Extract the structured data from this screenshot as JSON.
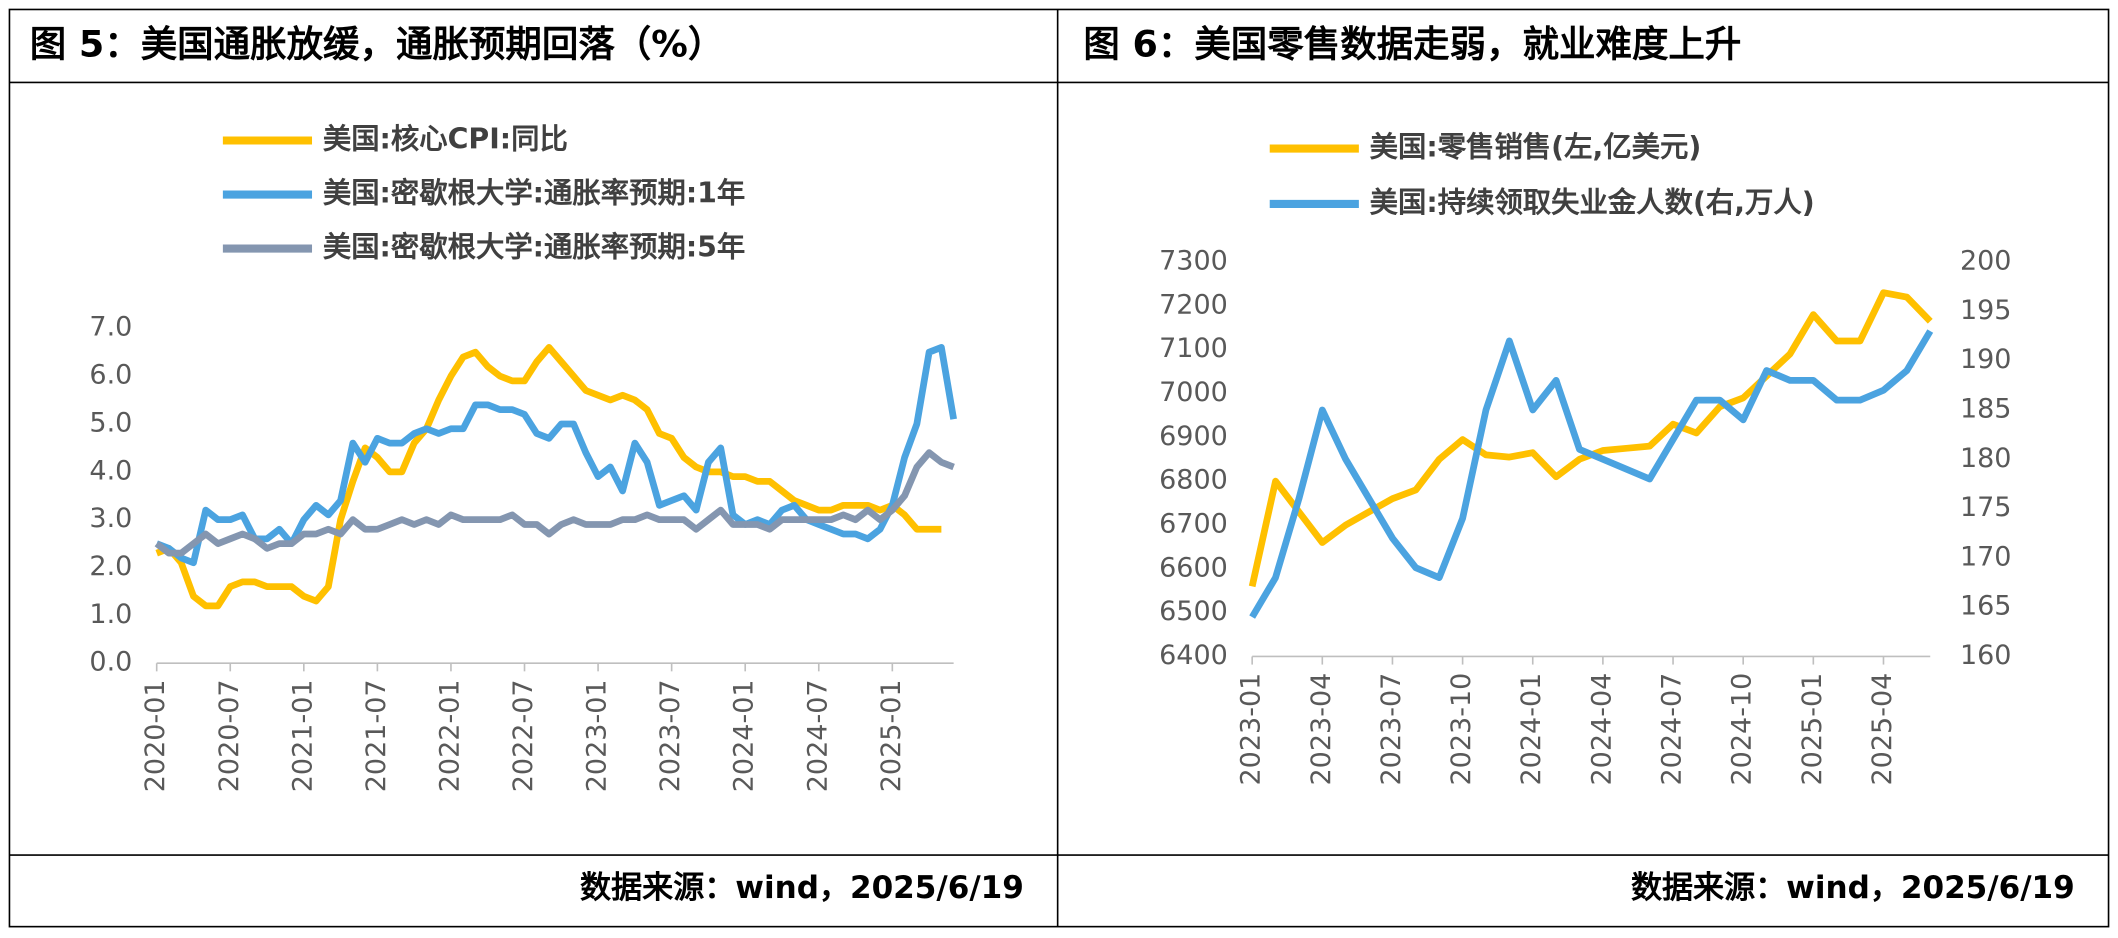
{
  "chart_data": [
    {
      "type": "line",
      "title": "图 5：美国通胀放缓，通胀预期回落（%）",
      "source": "数据来源：wind，2025/6/19",
      "categories": [
        "2020-01",
        null,
        null,
        null,
        null,
        null,
        "2020-07",
        null,
        null,
        null,
        null,
        null,
        "2021-01",
        null,
        null,
        null,
        null,
        null,
        "2021-07",
        null,
        null,
        null,
        null,
        null,
        "2022-01",
        null,
        null,
        null,
        null,
        null,
        "2022-07",
        null,
        null,
        null,
        null,
        null,
        "2023-01",
        null,
        null,
        null,
        null,
        null,
        "2023-07",
        null,
        null,
        null,
        null,
        null,
        "2024-01",
        null,
        null,
        null,
        null,
        null,
        "2024-07",
        null,
        null,
        null,
        null,
        null,
        "2025-01",
        null,
        null,
        null,
        null,
        null
      ],
      "ylim": [
        0,
        7
      ],
      "yticks": [
        {
          "value": 0,
          "label": "0.0"
        },
        {
          "value": 1,
          "label": "1.0"
        },
        {
          "value": 2,
          "label": "2.0"
        },
        {
          "value": 3,
          "label": "3.0"
        },
        {
          "value": 4,
          "label": "4.0"
        },
        {
          "value": 5,
          "label": "5.0"
        },
        {
          "value": 6,
          "label": "6.0"
        },
        {
          "value": 7,
          "label": "7.0"
        }
      ],
      "series": [
        {
          "name": "美国:核心CPI:同比",
          "color": "#FFC000",
          "values": [
            2.3,
            2.4,
            2.1,
            1.4,
            1.2,
            1.2,
            1.6,
            1.7,
            1.7,
            1.6,
            1.6,
            1.6,
            1.4,
            1.3,
            1.6,
            3.0,
            3.8,
            4.5,
            4.3,
            4.0,
            4.0,
            4.6,
            4.9,
            5.5,
            6.0,
            6.4,
            6.5,
            6.2,
            6.0,
            5.9,
            5.9,
            6.3,
            6.6,
            6.3,
            6.0,
            5.7,
            5.6,
            5.5,
            5.6,
            5.5,
            5.3,
            4.8,
            4.7,
            4.3,
            4.1,
            4.0,
            4.0,
            3.9,
            3.9,
            3.8,
            3.8,
            3.6,
            3.4,
            3.3,
            3.2,
            3.2,
            3.3,
            3.3,
            3.3,
            3.2,
            3.3,
            3.1,
            2.8,
            2.8,
            2.8,
            null
          ]
        },
        {
          "name": "美国:密歇根大学:通胀率预期:1年",
          "color": "#4BA3E0",
          "values": [
            2.5,
            2.4,
            2.2,
            2.1,
            3.2,
            3.0,
            3.0,
            3.1,
            2.6,
            2.6,
            2.8,
            2.5,
            3.0,
            3.3,
            3.1,
            3.4,
            4.6,
            4.2,
            4.7,
            4.6,
            4.6,
            4.8,
            4.9,
            4.8,
            4.9,
            4.9,
            5.4,
            5.4,
            5.3,
            5.3,
            5.2,
            4.8,
            4.7,
            5.0,
            5.0,
            4.4,
            3.9,
            4.1,
            3.6,
            4.6,
            4.2,
            3.3,
            3.4,
            3.5,
            3.2,
            4.2,
            4.5,
            3.1,
            2.9,
            3.0,
            2.9,
            3.2,
            3.3,
            3.0,
            2.9,
            2.8,
            2.7,
            2.7,
            2.6,
            2.8,
            3.3,
            4.3,
            5.0,
            6.5,
            6.6,
            5.1
          ]
        },
        {
          "name": "美国:密歇根大学:通胀率预期:5年",
          "color": "#8496B0",
          "values": [
            2.5,
            2.3,
            2.3,
            2.5,
            2.7,
            2.5,
            2.6,
            2.7,
            2.6,
            2.4,
            2.5,
            2.5,
            2.7,
            2.7,
            2.8,
            2.7,
            3.0,
            2.8,
            2.8,
            2.9,
            3.0,
            2.9,
            3.0,
            2.9,
            3.1,
            3.0,
            3.0,
            3.0,
            3.0,
            3.1,
            2.9,
            2.9,
            2.7,
            2.9,
            3.0,
            2.9,
            2.9,
            2.9,
            3.0,
            3.0,
            3.1,
            3.0,
            3.0,
            3.0,
            2.8,
            3.0,
            3.2,
            2.9,
            2.9,
            2.9,
            2.8,
            3.0,
            3.0,
            3.0,
            3.0,
            3.0,
            3.1,
            3.0,
            3.2,
            3.0,
            3.2,
            3.5,
            4.1,
            4.4,
            4.2,
            4.1
          ]
        }
      ]
    },
    {
      "type": "line",
      "title": "图 6：美国零售数据走弱，就业难度上升",
      "source": "数据来源：wind，2025/6/19",
      "categories": [
        "2023-01",
        null,
        null,
        "2023-04",
        null,
        null,
        "2023-07",
        null,
        null,
        "2023-10",
        null,
        null,
        "2024-01",
        null,
        null,
        "2024-04",
        null,
        null,
        "2024-07",
        null,
        null,
        "2024-10",
        null,
        null,
        "2025-01",
        null,
        null,
        "2025-04",
        null,
        null
      ],
      "ylim": [
        6400,
        7300
      ],
      "yticks": [
        6400,
        6500,
        6600,
        6700,
        6800,
        6900,
        7000,
        7100,
        7200,
        7300
      ],
      "y2lim": [
        160,
        200
      ],
      "y2ticks": [
        160,
        165,
        170,
        175,
        180,
        185,
        190,
        195,
        200
      ],
      "series": [
        {
          "name": "美国:零售销售(左,亿美元)",
          "color": "#FFC000",
          "values": [
            6560,
            6800,
            6730,
            6660,
            6700,
            6730,
            6760,
            6780,
            6850,
            6895,
            6860,
            6855,
            6865,
            6810,
            6850,
            6870,
            6875,
            6880,
            6930,
            6910,
            6970,
            6990,
            7040,
            7090,
            7180,
            7120,
            7120,
            7230,
            7220,
            7165
          ]
        },
        {
          "name": "美国:持续领取失业金人数(右,万人)",
          "color": "#4BA3E0",
          "axis": "y2",
          "values": [
            164,
            168,
            176,
            185,
            180,
            176,
            172,
            169,
            168,
            174,
            185,
            192,
            185,
            188,
            181,
            180,
            179,
            178,
            182,
            186,
            186,
            184,
            189,
            188,
            188,
            186,
            186,
            187,
            189,
            193
          ]
        }
      ]
    }
  ]
}
